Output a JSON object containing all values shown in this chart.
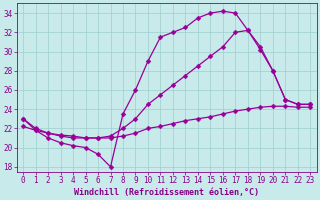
{
  "xlabel": "Windchill (Refroidissement éolien,°C)",
  "xlim": [
    -0.5,
    23.5
  ],
  "ylim": [
    17.5,
    35.0
  ],
  "xticks": [
    0,
    1,
    2,
    3,
    4,
    5,
    6,
    7,
    8,
    9,
    10,
    11,
    12,
    13,
    14,
    15,
    16,
    17,
    18,
    19,
    20,
    21,
    22,
    23
  ],
  "yticks": [
    18,
    20,
    22,
    24,
    26,
    28,
    30,
    32,
    34
  ],
  "background_color": "#c8eaea",
  "grid_color": "#9ecece",
  "line_color": "#990099",
  "line1_x": [
    0,
    1,
    2,
    3,
    4,
    5,
    6,
    7,
    8,
    9,
    10,
    11,
    12,
    13,
    14,
    15,
    16,
    17,
    18,
    19,
    20,
    21,
    22,
    23
  ],
  "line1_y": [
    23.0,
    21.8,
    21.0,
    20.5,
    20.2,
    20.0,
    19.3,
    18.0,
    23.5,
    26.0,
    29.0,
    31.5,
    32.0,
    32.5,
    33.5,
    34.0,
    34.2,
    34.0,
    32.2,
    30.2,
    28.0,
    25.0,
    24.5,
    24.5
  ],
  "line2_x": [
    0,
    1,
    2,
    3,
    4,
    5,
    6,
    7,
    8,
    9,
    10,
    11,
    12,
    13,
    14,
    15,
    16,
    17,
    18,
    19,
    20,
    21,
    22,
    23
  ],
  "line2_y": [
    23.0,
    22.0,
    21.5,
    21.2,
    21.0,
    21.0,
    21.0,
    21.2,
    22.0,
    23.0,
    24.5,
    25.5,
    26.5,
    27.5,
    28.5,
    29.5,
    30.5,
    32.0,
    32.2,
    30.5,
    28.0,
    25.0,
    24.5,
    24.5
  ],
  "line3_x": [
    0,
    1,
    2,
    3,
    4,
    5,
    6,
    7,
    8,
    9,
    10,
    11,
    12,
    13,
    14,
    15,
    16,
    17,
    18,
    19,
    20,
    21,
    22,
    23
  ],
  "line3_y": [
    22.2,
    21.8,
    21.5,
    21.3,
    21.2,
    21.0,
    21.0,
    21.0,
    21.2,
    21.5,
    22.0,
    22.2,
    22.5,
    22.8,
    23.0,
    23.2,
    23.5,
    23.8,
    24.0,
    24.2,
    24.3,
    24.3,
    24.2,
    24.2
  ],
  "marker": "D",
  "markersize": 2.5,
  "linewidth": 0.9,
  "font_color": "#880088",
  "tick_fontsize": 5.5,
  "label_fontsize": 6.0
}
